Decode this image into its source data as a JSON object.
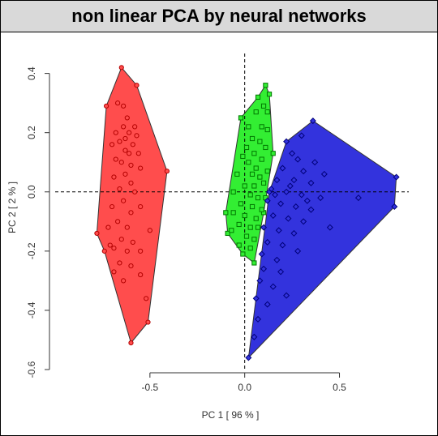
{
  "chart_data": {
    "type": "scatter",
    "title": "non linear PCA by neural networks",
    "xlabel": "PC 1 [ 96 % ]",
    "ylabel": "PC 2 [ 2 % ]",
    "xticks": [
      -0.5,
      0.0,
      0.5
    ],
    "yticks": [
      -0.6,
      -0.4,
      -0.2,
      0.0,
      0.2,
      0.4
    ],
    "xlim": [
      -1.0,
      0.9
    ],
    "ylim": [
      -0.6,
      0.44
    ],
    "reference_lines": {
      "x": 0,
      "y": 0,
      "style": "dashed"
    },
    "series": [
      {
        "color": "#ff4d4d",
        "stroke": "#b30000",
        "hull": [
          [
            -0.65,
            0.42
          ],
          [
            -0.57,
            0.36
          ],
          [
            -0.41,
            0.07
          ],
          [
            -0.51,
            -0.44
          ],
          [
            -0.6,
            -0.51
          ],
          [
            -0.74,
            -0.2
          ],
          [
            -0.78,
            -0.14
          ],
          [
            -0.73,
            0.29
          ]
        ],
        "points": [
          [
            -0.65,
            0.42
          ],
          [
            -0.57,
            0.36
          ],
          [
            -0.41,
            0.07
          ],
          [
            -0.51,
            -0.44
          ],
          [
            -0.6,
            -0.51
          ],
          [
            -0.74,
            -0.2
          ],
          [
            -0.78,
            -0.14
          ],
          [
            -0.73,
            0.29
          ],
          [
            -0.67,
            0.3
          ],
          [
            -0.64,
            0.29
          ],
          [
            -0.68,
            0.2
          ],
          [
            -0.64,
            0.22
          ],
          [
            -0.63,
            0.18
          ],
          [
            -0.61,
            0.2
          ],
          [
            -0.57,
            0.19
          ],
          [
            -0.59,
            0.16
          ],
          [
            -0.66,
            0.17
          ],
          [
            -0.7,
            0.16
          ],
          [
            -0.63,
            0.14
          ],
          [
            -0.61,
            0.13
          ],
          [
            -0.56,
            0.13
          ],
          [
            -0.68,
            0.11
          ],
          [
            -0.65,
            0.1
          ],
          [
            -0.6,
            0.09
          ],
          [
            -0.55,
            0.08
          ],
          [
            -0.63,
            0.06
          ],
          [
            -0.69,
            0.05
          ],
          [
            -0.6,
            0.03
          ],
          [
            -0.66,
            0.01
          ],
          [
            -0.58,
            0.0
          ],
          [
            -0.64,
            -0.03
          ],
          [
            -0.7,
            -0.05
          ],
          [
            -0.6,
            -0.07
          ],
          [
            -0.55,
            -0.05
          ],
          [
            -0.67,
            -0.1
          ],
          [
            -0.62,
            -0.12
          ],
          [
            -0.72,
            -0.12
          ],
          [
            -0.65,
            -0.16
          ],
          [
            -0.59,
            -0.17
          ],
          [
            -0.69,
            -0.19
          ],
          [
            -0.62,
            -0.2
          ],
          [
            -0.5,
            -0.13
          ],
          [
            -0.55,
            -0.2
          ],
          [
            -0.66,
            -0.24
          ],
          [
            -0.6,
            -0.25
          ],
          [
            -0.69,
            -0.27
          ],
          [
            -0.64,
            -0.3
          ],
          [
            -0.55,
            -0.28
          ],
          [
            -0.52,
            -0.36
          ],
          [
            -0.71,
            -0.18
          ],
          [
            -0.58,
            0.22
          ],
          [
            -0.62,
            0.25
          ]
        ]
      },
      {
        "color": "#33ee33",
        "stroke": "#007700",
        "hull": [
          [
            0.11,
            0.36
          ],
          [
            0.13,
            0.33
          ],
          [
            0.15,
            0.13
          ],
          [
            0.1,
            -0.07
          ],
          [
            0.05,
            -0.24
          ],
          [
            -0.01,
            -0.21
          ],
          [
            -0.09,
            -0.14
          ],
          [
            -0.1,
            -0.07
          ],
          [
            -0.02,
            0.25
          ],
          [
            0.07,
            0.32
          ]
        ],
        "points": [
          [
            0.11,
            0.36
          ],
          [
            0.13,
            0.33
          ],
          [
            0.15,
            0.13
          ],
          [
            0.1,
            -0.07
          ],
          [
            0.05,
            -0.24
          ],
          [
            -0.01,
            -0.21
          ],
          [
            -0.09,
            -0.14
          ],
          [
            -0.1,
            -0.07
          ],
          [
            -0.02,
            0.25
          ],
          [
            0.07,
            0.32
          ],
          [
            0.1,
            0.29
          ],
          [
            0.12,
            0.27
          ],
          [
            0.06,
            0.27
          ],
          [
            0.02,
            0.22
          ],
          [
            0.09,
            0.22
          ],
          [
            0.12,
            0.21
          ],
          [
            0.04,
            0.18
          ],
          [
            0.08,
            0.17
          ],
          [
            0.01,
            0.15
          ],
          [
            0.11,
            0.15
          ],
          [
            -0.01,
            0.12
          ],
          [
            0.05,
            0.13
          ],
          [
            0.09,
            0.11
          ],
          [
            0.02,
            0.1
          ],
          [
            0.06,
            0.08
          ],
          [
            0.12,
            0.07
          ],
          [
            -0.04,
            0.06
          ],
          [
            0.04,
            0.06
          ],
          [
            0.08,
            0.05
          ],
          [
            0.1,
            0.03
          ],
          [
            0.0,
            0.02
          ],
          [
            0.05,
            0.02
          ],
          [
            -0.06,
            0.0
          ],
          [
            0.03,
            -0.01
          ],
          [
            0.07,
            -0.02
          ],
          [
            0.11,
            -0.02
          ],
          [
            -0.02,
            -0.04
          ],
          [
            0.04,
            -0.05
          ],
          [
            0.09,
            -0.06
          ],
          [
            -0.06,
            -0.07
          ],
          [
            0.0,
            -0.08
          ],
          [
            0.06,
            -0.09
          ],
          [
            -0.03,
            -0.11
          ],
          [
            0.03,
            -0.12
          ],
          [
            0.07,
            -0.12
          ],
          [
            -0.07,
            -0.13
          ],
          [
            0.01,
            -0.15
          ],
          [
            0.05,
            -0.16
          ],
          [
            -0.03,
            -0.18
          ],
          [
            0.03,
            -0.19
          ]
        ]
      },
      {
        "color": "#3333dd",
        "stroke": "#00007a",
        "hull": [
          [
            0.36,
            0.24
          ],
          [
            0.8,
            0.05
          ],
          [
            0.79,
            -0.05
          ],
          [
            0.02,
            -0.56
          ],
          [
            0.13,
            0.0
          ],
          [
            0.22,
            0.17
          ]
        ],
        "points": [
          [
            0.36,
            0.24
          ],
          [
            0.8,
            0.05
          ],
          [
            0.79,
            -0.05
          ],
          [
            0.02,
            -0.56
          ],
          [
            0.13,
            0.0
          ],
          [
            0.22,
            0.17
          ],
          [
            0.3,
            0.19
          ],
          [
            0.25,
            0.13
          ],
          [
            0.28,
            0.11
          ],
          [
            0.37,
            0.1
          ],
          [
            0.2,
            0.08
          ],
          [
            0.31,
            0.07
          ],
          [
            0.42,
            0.06
          ],
          [
            0.17,
            0.04
          ],
          [
            0.26,
            0.04
          ],
          [
            0.35,
            0.03
          ],
          [
            0.14,
            0.01
          ],
          [
            0.22,
            0.0
          ],
          [
            0.3,
            -0.01
          ],
          [
            0.4,
            -0.02
          ],
          [
            0.12,
            -0.03
          ],
          [
            0.19,
            -0.04
          ],
          [
            0.27,
            -0.05
          ],
          [
            0.35,
            -0.06
          ],
          [
            0.15,
            -0.08
          ],
          [
            0.23,
            -0.09
          ],
          [
            0.31,
            -0.1
          ],
          [
            0.1,
            -0.12
          ],
          [
            0.18,
            -0.13
          ],
          [
            0.26,
            -0.14
          ],
          [
            0.12,
            -0.17
          ],
          [
            0.2,
            -0.18
          ],
          [
            0.28,
            -0.2
          ],
          [
            0.09,
            -0.21
          ],
          [
            0.17,
            -0.23
          ],
          [
            0.1,
            -0.26
          ],
          [
            0.19,
            -0.27
          ],
          [
            0.08,
            -0.3
          ],
          [
            0.15,
            -0.32
          ],
          [
            0.06,
            -0.36
          ],
          [
            0.12,
            -0.38
          ],
          [
            0.07,
            -0.43
          ],
          [
            0.05,
            -0.49
          ],
          [
            0.22,
            -0.35
          ],
          [
            0.45,
            -0.12
          ],
          [
            0.6,
            -0.02
          ],
          [
            0.16,
            -0.01
          ],
          [
            0.24,
            0.02
          ],
          [
            0.33,
            -0.03
          ]
        ]
      }
    ]
  }
}
